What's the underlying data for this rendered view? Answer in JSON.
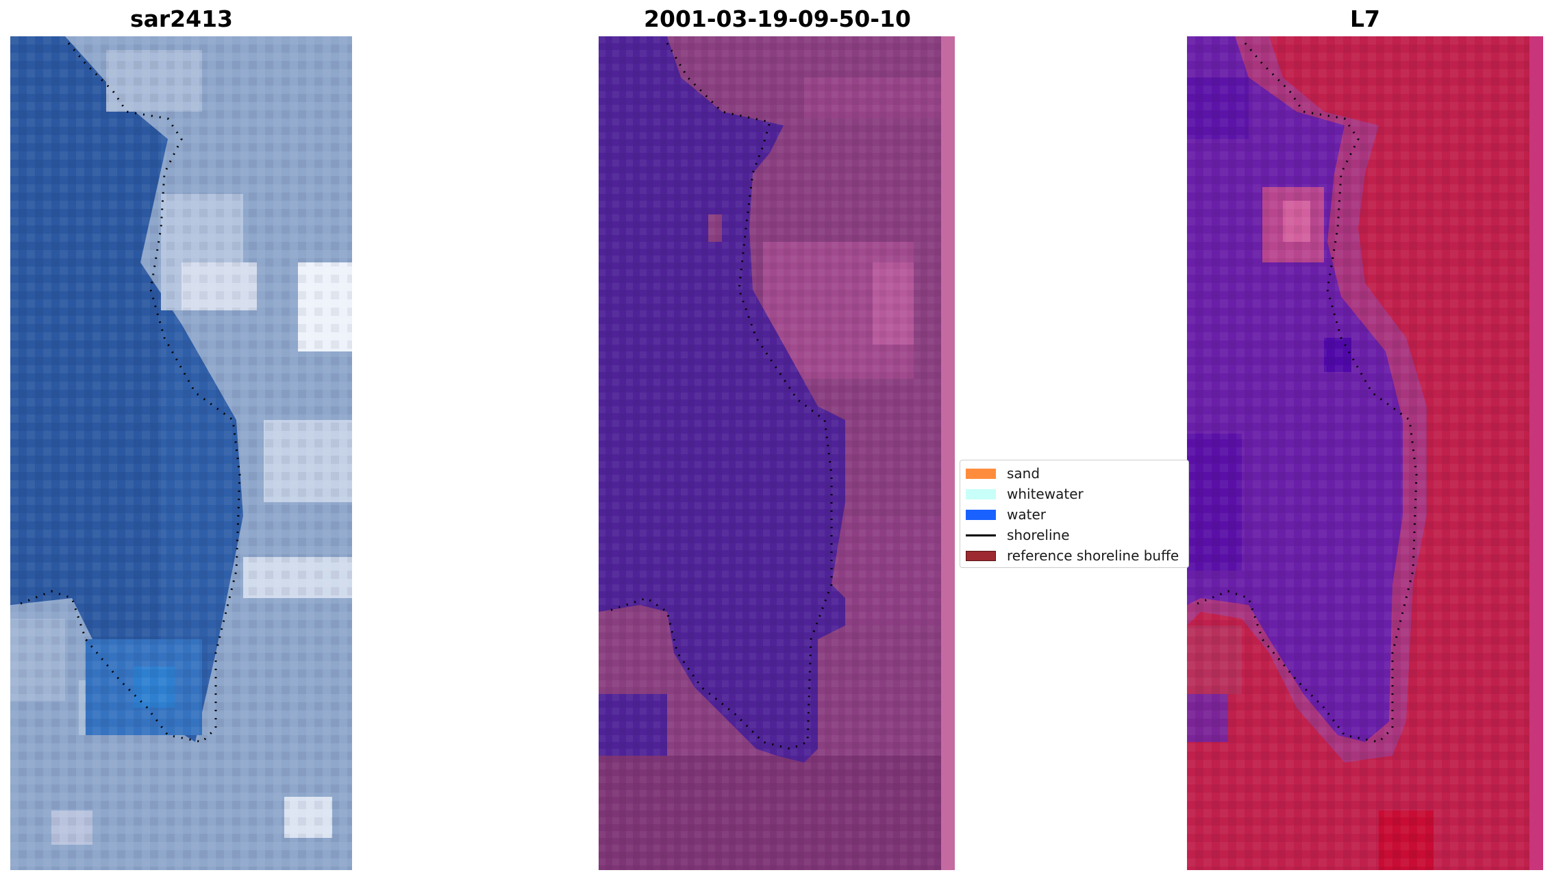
{
  "panels": [
    {
      "title": "sar2413",
      "image": "true-color satellite image of coastline"
    },
    {
      "title": "2001-03-19-09-50-10",
      "image": "classified image with water mask"
    },
    {
      "title": "L7",
      "image": "false-color index image"
    }
  ],
  "legend": {
    "items": [
      {
        "label": "sand",
        "color": "#ff8c3c"
      },
      {
        "label": "whitewater",
        "color": "#c8fff8"
      },
      {
        "label": "water",
        "color": "#1a62ff"
      },
      {
        "label": "shoreline",
        "color": "#000000"
      },
      {
        "label": "reference shoreline buffe",
        "color": "#9c2a30"
      }
    ]
  },
  "colors": {
    "water_class": "#4f2397",
    "land_class": "#8a3f80",
    "l7_land": "#c0204c",
    "l7_water": "#6a1fa8",
    "rgb_water": "#2f64b0",
    "rgb_land": "#8fa8cc"
  }
}
